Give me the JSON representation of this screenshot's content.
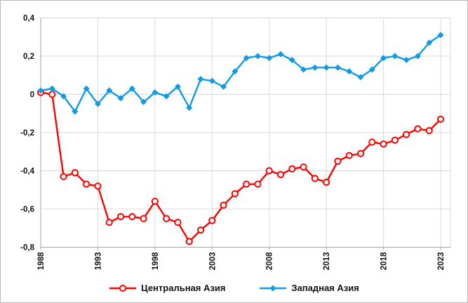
{
  "chart_data": {
    "type": "line",
    "x": [
      1988,
      1989,
      1990,
      1991,
      1992,
      1993,
      1994,
      1995,
      1996,
      1997,
      1998,
      1999,
      2000,
      2001,
      2002,
      2003,
      2004,
      2005,
      2006,
      2007,
      2008,
      2009,
      2010,
      2011,
      2012,
      2013,
      2014,
      2015,
      2016,
      2017,
      2018,
      2019,
      2020,
      2021,
      2022,
      2023
    ],
    "series": [
      {
        "id": "central-asia",
        "name": "Центральная Азия",
        "color": "#FF0000",
        "marker": "open-circle",
        "values": [
          0.01,
          0.0,
          -0.43,
          -0.41,
          -0.47,
          -0.48,
          -0.67,
          -0.64,
          -0.64,
          -0.65,
          -0.56,
          -0.65,
          -0.67,
          -0.77,
          -0.71,
          -0.66,
          -0.58,
          -0.52,
          -0.47,
          -0.47,
          -0.4,
          -0.42,
          -0.39,
          -0.38,
          -0.44,
          -0.46,
          -0.35,
          -0.32,
          -0.31,
          -0.25,
          -0.26,
          -0.24,
          -0.21,
          -0.18,
          -0.19,
          -0.13
        ]
      },
      {
        "id": "western-asia",
        "name": "Западная Азия",
        "color": "#0F9BE6",
        "marker": "diamond",
        "values": [
          0.02,
          0.03,
          -0.01,
          -0.09,
          0.03,
          -0.05,
          0.02,
          -0.02,
          0.03,
          -0.04,
          0.01,
          -0.01,
          0.04,
          -0.07,
          0.08,
          0.07,
          0.04,
          0.12,
          0.19,
          0.2,
          0.19,
          0.21,
          0.18,
          0.13,
          0.14,
          0.14,
          0.14,
          0.12,
          0.09,
          0.13,
          0.19,
          0.2,
          0.18,
          0.2,
          0.27,
          0.31
        ]
      }
    ],
    "title": "",
    "xlabel": "",
    "ylabel": "",
    "ylim": [
      -0.8,
      0.4
    ],
    "y_ticks": [
      {
        "value": 0.4,
        "label": "0,4"
      },
      {
        "value": 0.2,
        "label": "0,2"
      },
      {
        "value": 0,
        "label": "0"
      },
      {
        "value": -0.2,
        "label": "-0,2"
      },
      {
        "value": -0.4,
        "label": "-0,4"
      },
      {
        "value": -0.6,
        "label": "-0,6"
      },
      {
        "value": -0.8,
        "label": "-0,8"
      }
    ],
    "x_ticks": [
      {
        "value": 1988,
        "label": "1988"
      },
      {
        "value": 1993,
        "label": "1993"
      },
      {
        "value": 1998,
        "label": "1998"
      },
      {
        "value": 2003,
        "label": "2003"
      },
      {
        "value": 2008,
        "label": "2008"
      },
      {
        "value": 2013,
        "label": "2013"
      },
      {
        "value": 2018,
        "label": "2018"
      },
      {
        "value": 2023,
        "label": "2023"
      }
    ],
    "grid": true,
    "legend_position": "bottom",
    "style": {
      "grid_color": "#D9D9D9",
      "axis_color": "#A6A6A6",
      "text_color": "#111111",
      "background": "#FFFFFF"
    }
  }
}
